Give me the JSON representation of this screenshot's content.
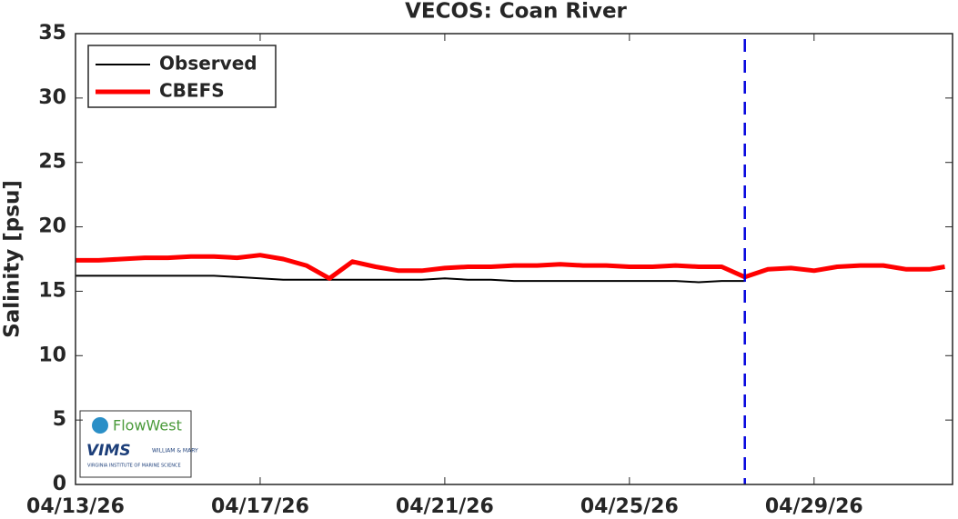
{
  "chart_data": {
    "type": "line",
    "title": "VECOS: Coan River",
    "ylabel": "Salinity [psu]",
    "xlim": [
      "04/13/26 00:00",
      "05/02/26 00:00"
    ],
    "xticks": [
      "04/13/26",
      "04/17/26",
      "04/21/26",
      "04/25/26",
      "04/29/26"
    ],
    "ylim": [
      0,
      35
    ],
    "yticks": [
      0,
      5,
      10,
      15,
      20,
      25,
      30,
      35
    ],
    "legend": "upper left",
    "vline": {
      "x": "04/27/26 12:00",
      "color": "#0000dd"
    },
    "series": [
      {
        "name": "Observed",
        "color": "#000000",
        "x": [
          "04/13/26 00:00",
          "04/13/26 12:00",
          "04/14/26 00:00",
          "04/14/26 12:00",
          "04/15/26 00:00",
          "04/15/26 12:00",
          "04/16/26 00:00",
          "04/16/26 12:00",
          "04/17/26 00:00",
          "04/17/26 12:00",
          "04/18/26 00:00",
          "04/18/26 12:00",
          "04/19/26 00:00",
          "04/19/26 12:00",
          "04/20/26 00:00",
          "04/20/26 12:00",
          "04/21/26 00:00",
          "04/21/26 12:00",
          "04/22/26 00:00",
          "04/22/26 12:00",
          "04/23/26 00:00",
          "04/23/26 12:00",
          "04/24/26 00:00",
          "04/24/26 12:00",
          "04/25/26 00:00",
          "04/25/26 12:00",
          "04/26/26 00:00",
          "04/26/26 12:00",
          "04/27/26 00:00",
          "04/27/26 12:00"
        ],
        "values": [
          16.2,
          16.2,
          16.2,
          16.2,
          16.2,
          16.2,
          16.2,
          16.1,
          16.0,
          15.9,
          15.9,
          15.9,
          15.9,
          15.9,
          15.9,
          15.9,
          16.0,
          15.9,
          15.9,
          15.8,
          15.8,
          15.8,
          15.8,
          15.8,
          15.8,
          15.8,
          15.8,
          15.7,
          15.8,
          15.8
        ]
      },
      {
        "name": "CBEFS",
        "color": "#ff0000",
        "x": [
          "04/13/26 00:00",
          "04/13/26 12:00",
          "04/14/26 00:00",
          "04/14/26 12:00",
          "04/15/26 00:00",
          "04/15/26 12:00",
          "04/16/26 00:00",
          "04/16/26 12:00",
          "04/17/26 00:00",
          "04/17/26 12:00",
          "04/18/26 00:00",
          "04/18/26 12:00",
          "04/19/26 00:00",
          "04/19/26 12:00",
          "04/20/26 00:00",
          "04/20/26 12:00",
          "04/21/26 00:00",
          "04/21/26 12:00",
          "04/22/26 00:00",
          "04/22/26 12:00",
          "04/23/26 00:00",
          "04/23/26 12:00",
          "04/24/26 00:00",
          "04/24/26 12:00",
          "04/25/26 00:00",
          "04/25/26 12:00",
          "04/26/26 00:00",
          "04/26/26 12:00",
          "04/27/26 00:00",
          "04/27/26 12:00",
          "04/28/26 00:00",
          "04/28/26 12:00",
          "04/29/26 00:00",
          "04/29/26 12:00",
          "04/30/26 00:00",
          "04/30/26 12:00",
          "05/01/26 00:00",
          "05/01/26 12:00",
          "05/01/26 20:00"
        ],
        "values": [
          17.4,
          17.4,
          17.5,
          17.6,
          17.6,
          17.7,
          17.7,
          17.6,
          17.8,
          17.5,
          17.0,
          16.0,
          17.3,
          16.9,
          16.6,
          16.6,
          16.8,
          16.9,
          16.9,
          17.0,
          17.0,
          17.1,
          17.0,
          17.0,
          16.9,
          16.9,
          17.0,
          16.9,
          16.9,
          16.1,
          16.7,
          16.8,
          16.6,
          16.9,
          17.0,
          17.0,
          16.7,
          16.7,
          16.9
        ]
      }
    ]
  },
  "logo": {
    "name": "FlowWest",
    "org": "VIMS",
    "school": "WILLIAM & MARY",
    "caption": "VIRGINIA INSTITUTE OF MARINE SCIENCE"
  }
}
